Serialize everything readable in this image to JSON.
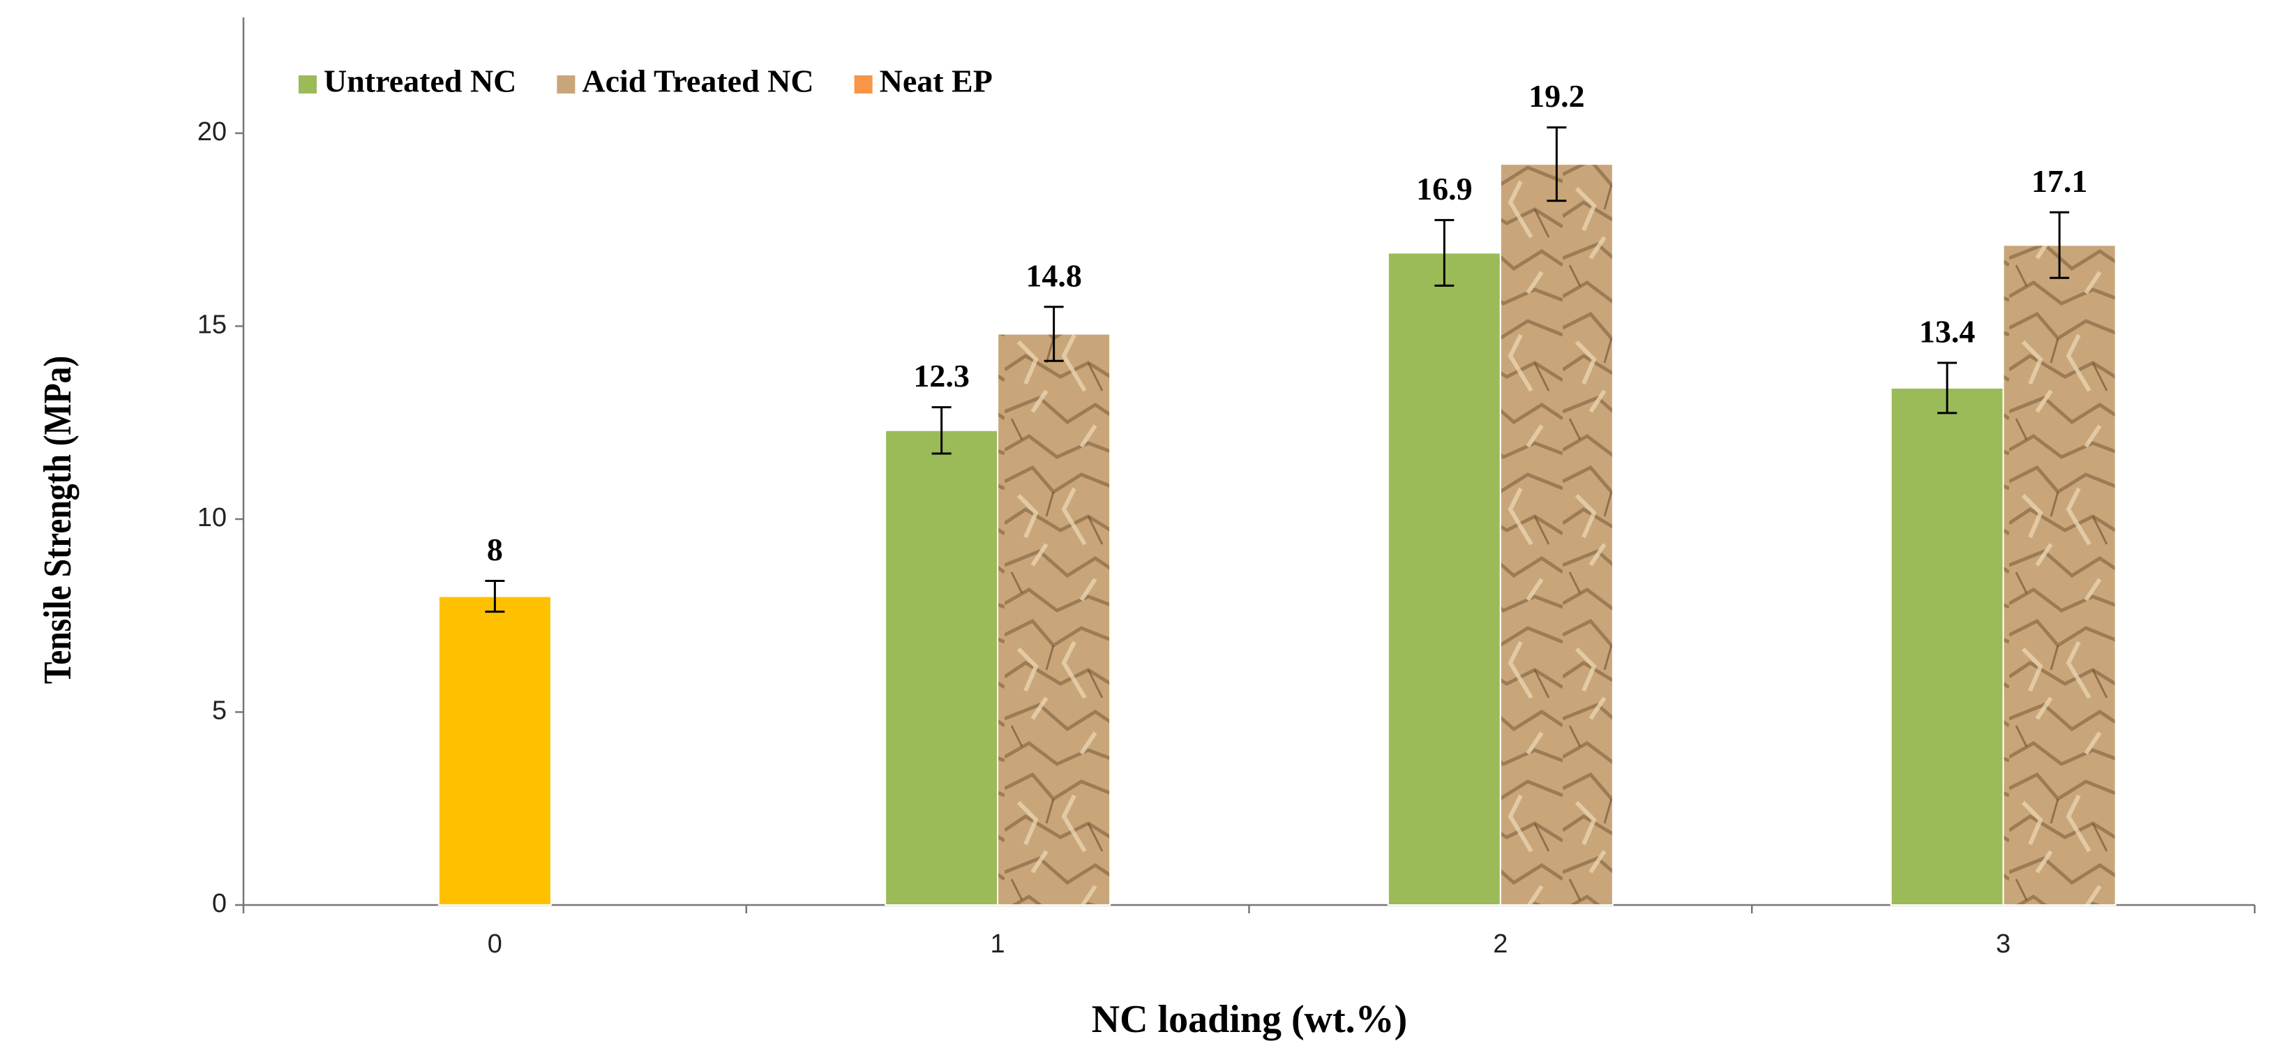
{
  "chart_data": {
    "type": "bar",
    "x_label": "NC loading (wt.%)",
    "y_label": "Tensile Strength (MPa)",
    "categories": [
      "0",
      "1",
      "2",
      "3"
    ],
    "series": [
      {
        "name": "Untreated NC",
        "color": "#9bbb59",
        "values": [
          null,
          12.3,
          16.9,
          13.4
        ],
        "errors": [
          null,
          0.6,
          0.85,
          0.65
        ]
      },
      {
        "name": "Acid Treated NC",
        "color": "#c9a67a",
        "texture": "crumpled paper",
        "values": [
          null,
          14.8,
          19.2,
          17.1
        ],
        "errors": [
          null,
          0.7,
          0.95,
          0.85
        ]
      },
      {
        "name": "Neat EP",
        "color": "#ffc000",
        "legend_color": "#f79646",
        "values": [
          8,
          null,
          null,
          null
        ],
        "errors": [
          0.4,
          null,
          null,
          null
        ]
      }
    ],
    "ylim": [
      0,
      23
    ],
    "yticks": [
      0,
      5,
      10,
      15,
      20
    ],
    "grid": false,
    "legend": "top-left"
  }
}
